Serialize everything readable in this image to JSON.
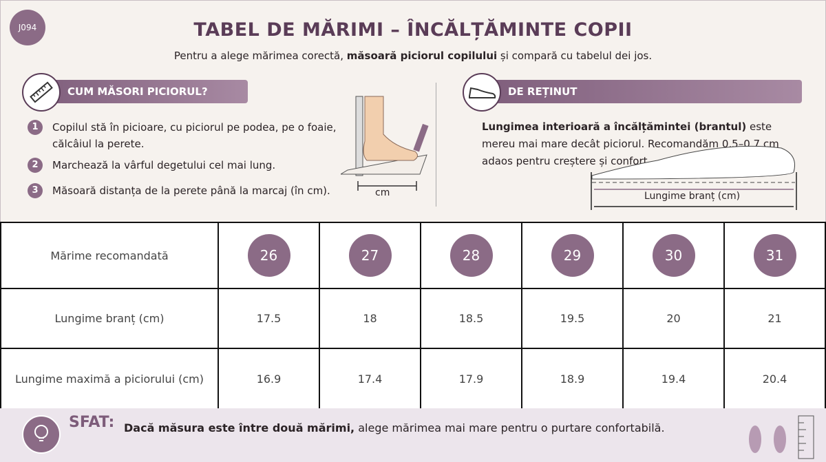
{
  "badge": "J094",
  "header": {
    "title": "TABEL DE MĂRIMI – ÎNCĂLȚĂMINTE COPII",
    "subtitle": [
      "Pentru a alege mărimea corectă, ",
      "măsoară piciorul copilului",
      " și compară cu tabelul dei jos."
    ]
  },
  "measure": {
    "heading": "CUM MĂSORI PICIORUL?",
    "steps": [
      {
        "number": 1,
        "text": "Copilul stă în picioare, cu piciorul pe podea, pe o foaie, călcâiul la perete."
      },
      {
        "number": 2,
        "text": "Marchează la vârful degetului cel mai lung."
      },
      {
        "number": 3,
        "text": "Măsoară distanța de la perete până la marcaj (în cm)."
      }
    ],
    "ruler_label": "cm"
  },
  "note": {
    "heading": "DE REȚINUT",
    "text": [
      "Lungimea interioară a încălțămintei (brantul)",
      " este mereu mai mare decât piciorul. Recomandăm 0,5–0,7 cm adaos pentru creștere și confort."
    ],
    "insole_label": "Lungime branț (cm)"
  },
  "table": {
    "rows": [
      [
        "Mărime recomandată",
        26,
        27,
        28,
        29,
        30,
        31
      ],
      [
        "Lungime branț (cm)",
        17.5,
        18,
        18.5,
        19.5,
        20,
        21
      ],
      [
        "Lungime maximă a piciorului (cm)",
        16.9,
        17.4,
        17.9,
        18.9,
        19.4,
        20.4
      ]
    ]
  },
  "tip": {
    "label": "SFAT:",
    "text": [
      "Dacă măsura este între două mărimi,",
      " alege mărimea mai mare pentru o purtare confortabilă."
    ]
  }
}
